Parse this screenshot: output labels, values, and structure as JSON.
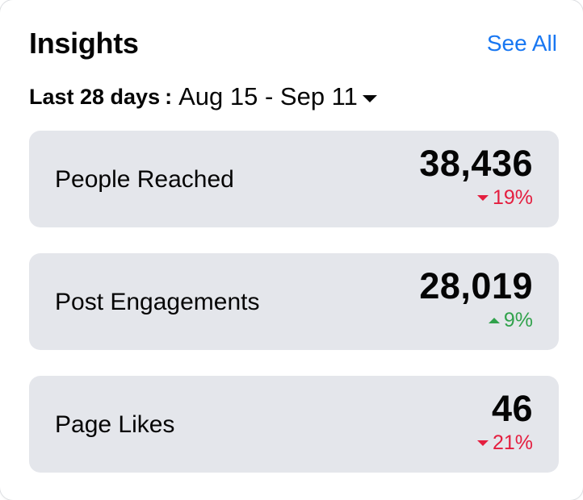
{
  "header": {
    "title": "Insights",
    "see_all": "See All"
  },
  "range": {
    "label": "Last 28 days",
    "separator": ":",
    "dates": "Aug 15 - Sep 11",
    "icon": "caret-down-icon"
  },
  "colors": {
    "accent": "#1877f2",
    "negative": "#e41e3f",
    "positive": "#31a24c",
    "card_bg": "#e4e6eb"
  },
  "metrics": [
    {
      "label": "People Reached",
      "value": "38,436",
      "change": "19%",
      "direction": "down"
    },
    {
      "label": "Post Engagements",
      "value": "28,019",
      "change": "9%",
      "direction": "up"
    },
    {
      "label": "Page Likes",
      "value": "46",
      "change": "21%",
      "direction": "down"
    }
  ]
}
